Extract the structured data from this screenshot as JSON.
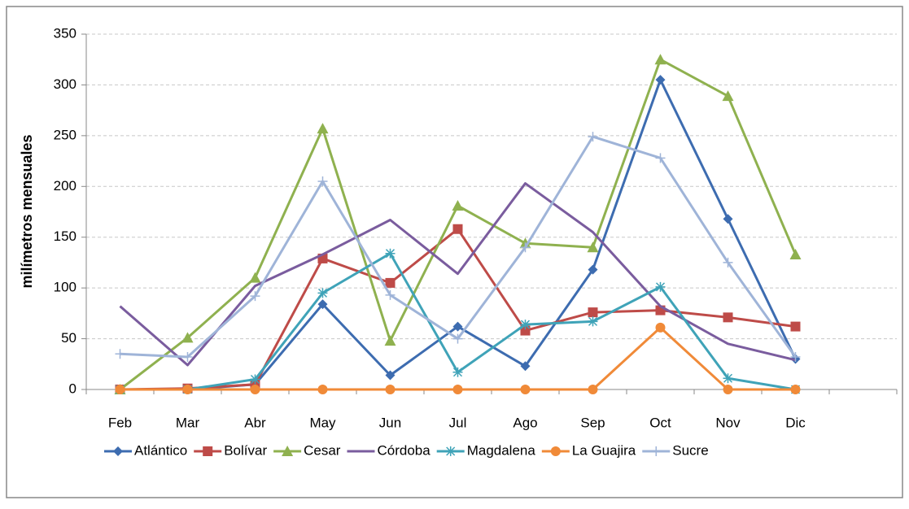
{
  "chart_data": {
    "type": "line",
    "y_label": "milímetros mensuales",
    "categories": [
      "Feb",
      "Mar",
      "Abr",
      "May",
      "Jun",
      "Jul",
      "Ago",
      "Sep",
      "Oct",
      "Nov",
      "Dic",
      null
    ],
    "series": [
      {
        "name": "Atlántico",
        "color": "#3d6cb0",
        "marker": "diamond",
        "values": [
          0,
          0,
          5,
          84,
          14,
          62,
          23,
          118,
          305,
          168,
          30,
          null
        ]
      },
      {
        "name": "Bolívar",
        "color": "#be4b48",
        "marker": "square",
        "values": [
          0,
          1,
          5,
          129,
          105,
          158,
          58,
          76,
          78,
          71,
          62,
          null
        ]
      },
      {
        "name": "Cesar",
        "color": "#8fb14f",
        "marker": "triangle",
        "values": [
          0,
          51,
          110,
          257,
          48,
          181,
          144,
          140,
          325,
          289,
          133,
          null
        ]
      },
      {
        "name": "Córdoba",
        "color": "#7a5c9e",
        "marker": "none",
        "values": [
          82,
          24,
          102,
          133,
          167,
          114,
          203,
          155,
          82,
          45,
          29,
          null
        ]
      },
      {
        "name": "Magdalena",
        "color": "#3fa3b8",
        "marker": "star",
        "values": [
          0,
          0,
          10,
          95,
          134,
          17,
          64,
          67,
          101,
          11,
          0,
          null
        ]
      },
      {
        "name": "La Guajira",
        "color": "#f08a38",
        "marker": "circle",
        "values": [
          0,
          0,
          0,
          0,
          0,
          0,
          0,
          0,
          61,
          0,
          0,
          null
        ]
      },
      {
        "name": "Sucre",
        "color": "#9fb4d8",
        "marker": "plus",
        "values": [
          35,
          32,
          92,
          205,
          93,
          50,
          140,
          249,
          228,
          125,
          32,
          null
        ]
      }
    ],
    "ylim": [
      0,
      350
    ],
    "yticks": [
      0,
      50,
      100,
      150,
      200,
      250,
      300,
      350
    ],
    "grid": true,
    "legend": "bottom"
  }
}
